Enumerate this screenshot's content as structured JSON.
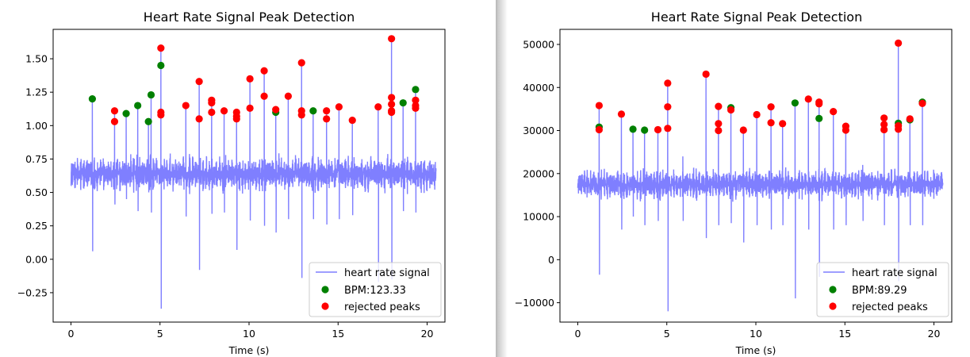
{
  "colors": {
    "signal": "#7f7fff",
    "accepted": "#008000",
    "rejected": "#ff0000",
    "axis": "#000000"
  },
  "chart_data": [
    {
      "type": "line",
      "title": "Heart Rate Signal Peak Detection",
      "xlabel": "Time (s)",
      "ylabel": "",
      "xlim": [
        -1,
        21
      ],
      "ylim": [
        -0.47,
        1.72
      ],
      "xticks": [
        0,
        5,
        10,
        15,
        20
      ],
      "xtick_labels": [
        "0",
        "5",
        "10",
        "15",
        "20"
      ],
      "yticks": [
        -0.25,
        0,
        0.25,
        0.5,
        0.75,
        1.0,
        1.25,
        1.5
      ],
      "ytick_labels": [
        "−0.25",
        "0.00",
        "0.25",
        "0.50",
        "0.75",
        "1.00",
        "1.25",
        "1.50"
      ],
      "legend_position": "lower-right",
      "series": [
        {
          "name": "heart rate signal",
          "kind": "line",
          "baseline": 0.64,
          "noise": 0.16,
          "duration": 20.5,
          "spikes": [
            [
              1.2,
              1.2,
              0.06
            ],
            [
              2.45,
              1.11,
              0.41
            ],
            [
              3.1,
              1.09,
              0.45
            ],
            [
              3.75,
              1.15,
              0.36
            ],
            [
              4.35,
              1.03,
              0.5
            ],
            [
              4.5,
              1.23,
              0.35
            ],
            [
              5.05,
              1.58,
              -0.37
            ],
            [
              6.45,
              1.15,
              0.32
            ],
            [
              7.2,
              1.33,
              -0.08
            ],
            [
              7.9,
              1.19,
              0.34
            ],
            [
              8.6,
              1.11,
              0.35
            ],
            [
              9.3,
              1.1,
              0.07
            ],
            [
              10.05,
              1.35,
              0.29
            ],
            [
              10.85,
              1.41,
              0.25
            ],
            [
              11.5,
              1.12,
              0.2
            ],
            [
              12.2,
              1.22,
              0.3
            ],
            [
              12.95,
              1.47,
              -0.14
            ],
            [
              13.6,
              1.12,
              0.3
            ],
            [
              14.35,
              1.11,
              0.26
            ],
            [
              15.05,
              1.14,
              0.3
            ],
            [
              15.8,
              1.04,
              0.33
            ],
            [
              17.25,
              1.14,
              -0.17
            ],
            [
              18.0,
              1.65,
              -0.15
            ],
            [
              18.65,
              1.17,
              0.36
            ],
            [
              19.35,
              1.27,
              0.35
            ]
          ]
        },
        {
          "name": "BPM:123.33",
          "kind": "scatter",
          "x": [
            1.2,
            3.1,
            3.75,
            4.35,
            4.5,
            5.05,
            11.5,
            13.6,
            18.65,
            19.35
          ],
          "y": [
            1.2,
            1.09,
            1.15,
            1.03,
            1.23,
            1.45,
            1.1,
            1.11,
            1.17,
            1.27
          ]
        },
        {
          "name": "rejected peaks",
          "kind": "scatter",
          "x": [
            2.45,
            2.45,
            5.05,
            5.05,
            5.05,
            6.45,
            7.2,
            7.2,
            7.9,
            7.9,
            7.9,
            8.6,
            9.3,
            9.3,
            9.3,
            10.05,
            10.05,
            10.85,
            10.85,
            11.5,
            12.2,
            12.95,
            12.95,
            12.95,
            14.35,
            14.35,
            15.05,
            15.8,
            17.25,
            18.0,
            18.0,
            18.0,
            18.0,
            18.0,
            19.35,
            19.35,
            19.35
          ],
          "y": [
            1.11,
            1.03,
            1.58,
            1.1,
            1.08,
            1.15,
            1.33,
            1.05,
            1.19,
            1.17,
            1.1,
            1.11,
            1.1,
            1.07,
            1.05,
            1.35,
            1.13,
            1.41,
            1.22,
            1.12,
            1.22,
            1.47,
            1.11,
            1.08,
            1.11,
            1.05,
            1.14,
            1.04,
            1.14,
            1.65,
            1.21,
            1.16,
            1.11,
            1.1,
            1.19,
            1.15,
            1.13
          ]
        }
      ]
    },
    {
      "type": "line",
      "title": "Heart Rate Signal Peak Detection",
      "xlabel": "Time (s)",
      "ylabel": "",
      "xlim": [
        -1,
        21
      ],
      "ylim": [
        -14500,
        53500
      ],
      "xticks": [
        0,
        5,
        10,
        15,
        20
      ],
      "xtick_labels": [
        "0",
        "5",
        "10",
        "15",
        "20"
      ],
      "yticks": [
        -10000,
        0,
        10000,
        20000,
        30000,
        40000,
        50000
      ],
      "ytick_labels": [
        "−10000",
        "0",
        "10000",
        "20000",
        "30000",
        "40000",
        "50000"
      ],
      "legend_position": "lower-right",
      "series": [
        {
          "name": "heart rate signal",
          "kind": "line",
          "baseline": 17500,
          "noise": 4200,
          "duration": 20.5,
          "spikes": [
            [
              1.2,
              35800,
              -3500
            ],
            [
              2.45,
              33800,
              7000
            ],
            [
              3.1,
              30300,
              10000
            ],
            [
              3.75,
              30100,
              8000
            ],
            [
              4.5,
              30200,
              9000
            ],
            [
              5.05,
              41000,
              -12000
            ],
            [
              5.9,
              24000,
              9000
            ],
            [
              7.2,
              43100,
              5000
            ],
            [
              7.9,
              35600,
              8000
            ],
            [
              8.6,
              35300,
              8500
            ],
            [
              9.3,
              30100,
              4000
            ],
            [
              10.05,
              33700,
              8000
            ],
            [
              10.85,
              35500,
              7000
            ],
            [
              11.5,
              31600,
              8000
            ],
            [
              12.2,
              36400,
              -9000
            ],
            [
              12.95,
              37300,
              7000
            ],
            [
              13.55,
              36600,
              -4000
            ],
            [
              14.35,
              34400,
              7000
            ],
            [
              15.05,
              31000,
              8000
            ],
            [
              16.0,
              22000,
              9000
            ],
            [
              17.2,
              32900,
              8000
            ],
            [
              18.0,
              50300,
              -5000
            ],
            [
              18.65,
              32700,
              8000
            ],
            [
              19.35,
              36500,
              8000
            ]
          ]
        },
        {
          "name": "BPM:89.29",
          "kind": "scatter",
          "x": [
            1.2,
            3.1,
            3.75,
            8.6,
            12.2,
            13.55,
            18.0,
            18.65,
            19.35
          ],
          "y": [
            30800,
            30300,
            30100,
            35300,
            36400,
            32800,
            31700,
            32500,
            36600
          ]
        },
        {
          "name": "rejected peaks",
          "kind": "scatter",
          "x": [
            1.2,
            1.2,
            2.45,
            4.5,
            5.05,
            5.05,
            5.05,
            7.2,
            7.9,
            7.9,
            7.9,
            8.6,
            9.3,
            10.05,
            10.85,
            10.85,
            11.5,
            12.95,
            13.55,
            13.55,
            14.35,
            15.05,
            15.05,
            17.2,
            17.2,
            17.2,
            18.0,
            18.0,
            18.0,
            18.65,
            19.35
          ],
          "y": [
            35800,
            30200,
            33800,
            30200,
            41000,
            35500,
            30500,
            43100,
            35600,
            31600,
            30000,
            34800,
            30100,
            33700,
            35500,
            31800,
            31600,
            37300,
            36600,
            36200,
            34400,
            31000,
            30100,
            32900,
            31400,
            30200,
            50300,
            31100,
            30300,
            32700,
            36300
          ]
        }
      ]
    }
  ]
}
